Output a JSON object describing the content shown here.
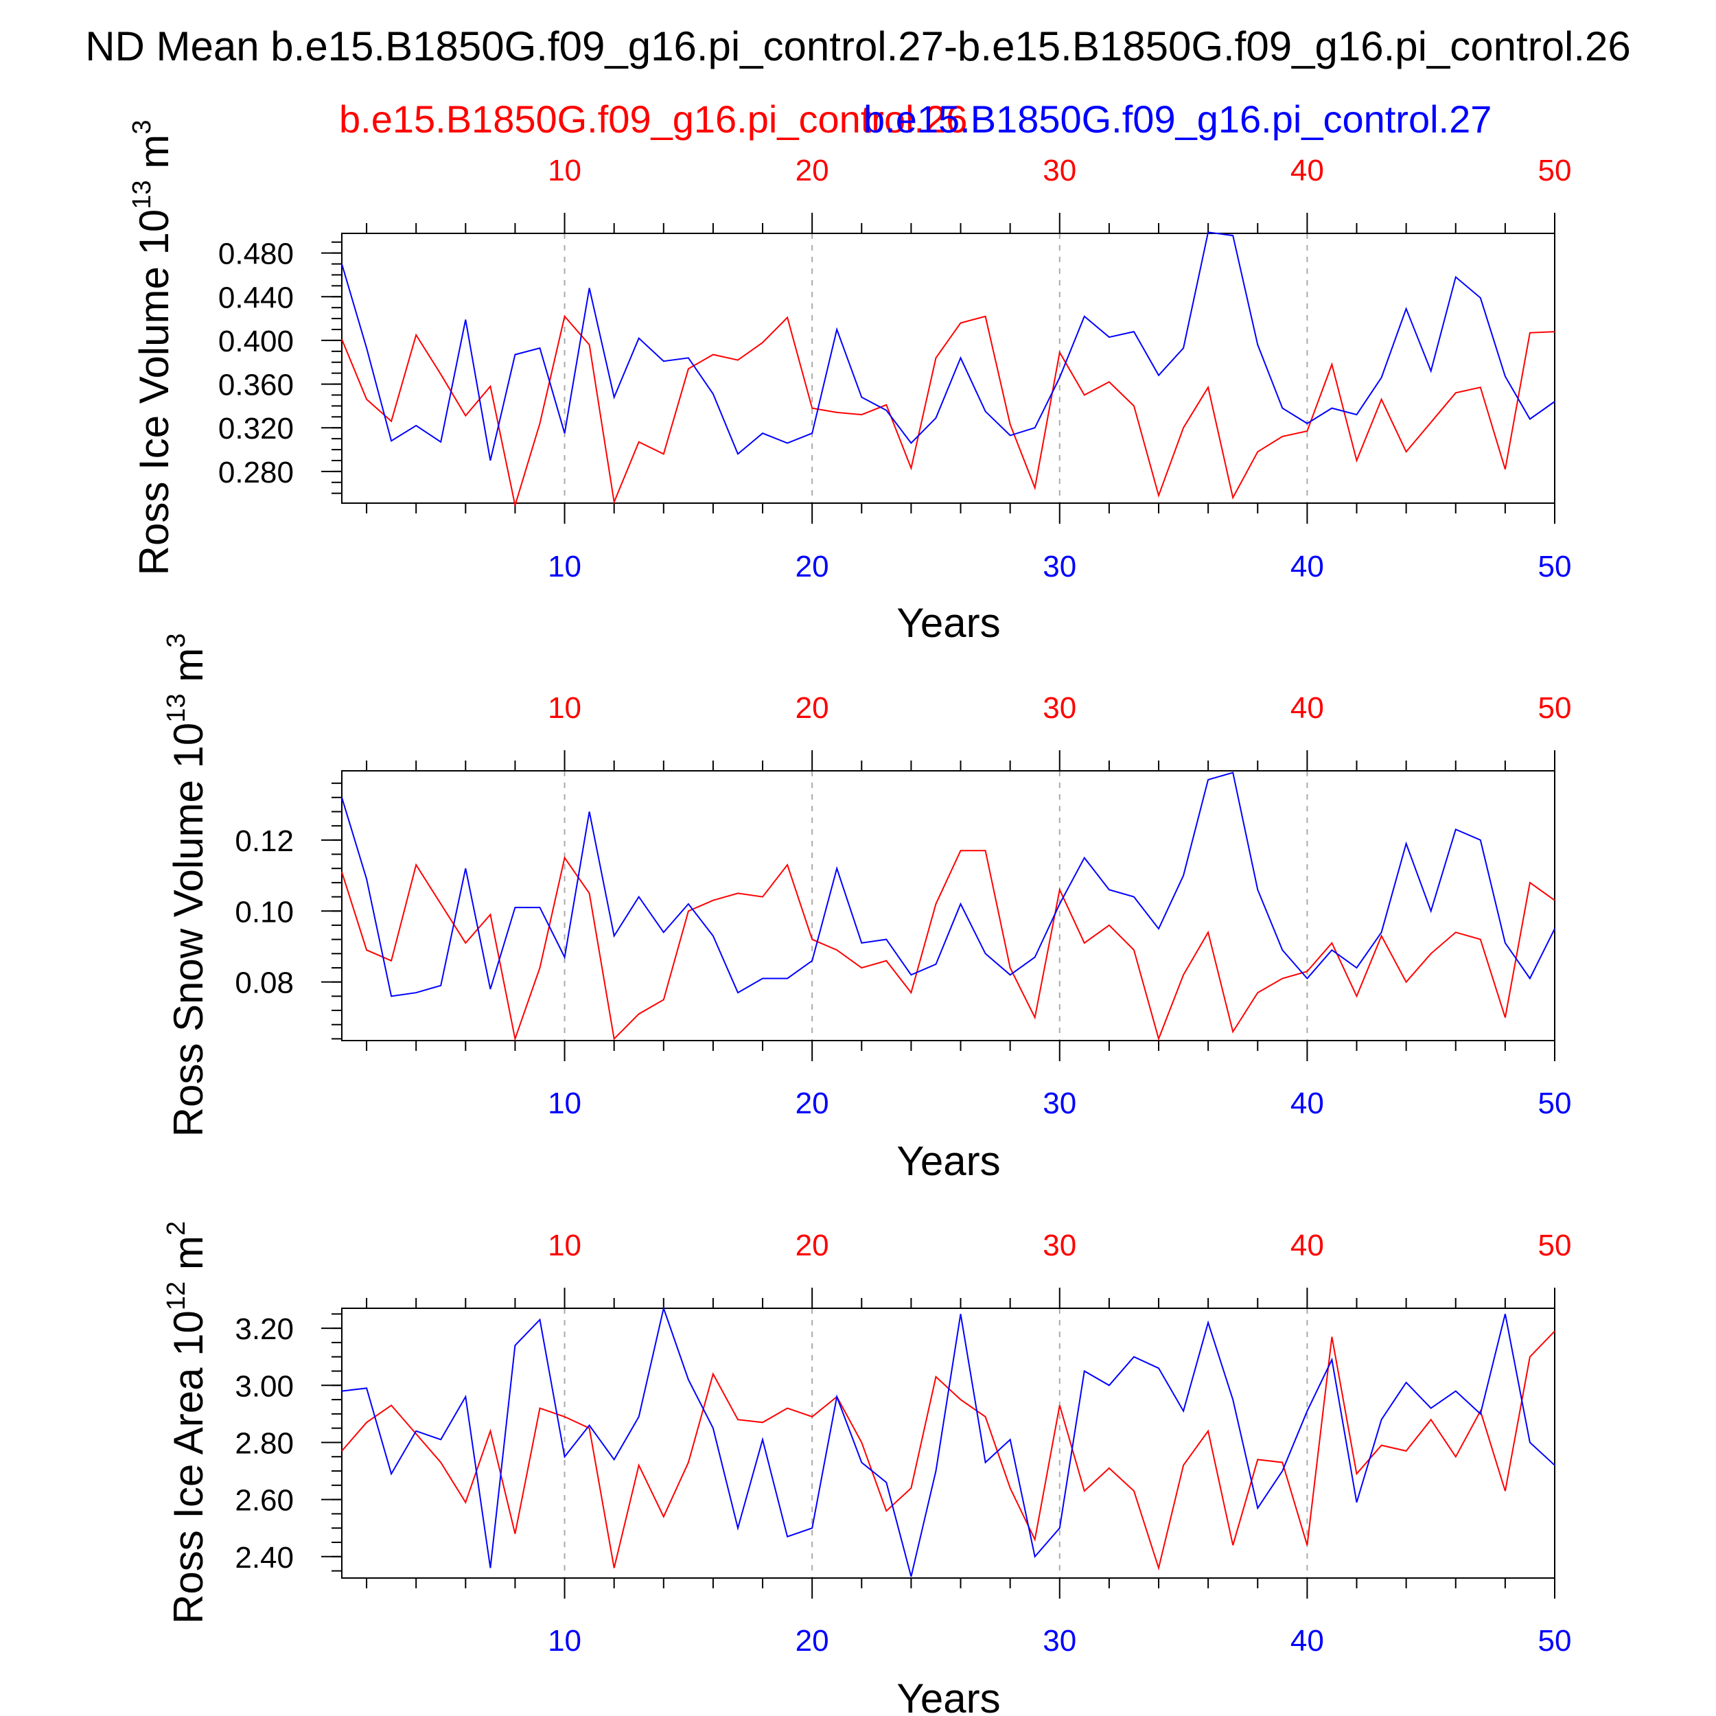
{
  "title": "ND Mean b.e15.B1850G.f09_g16.pi_control.27-b.e15.B1850G.f09_g16.pi_control.26",
  "legend": {
    "red_label": "b.e15.B1850G.f09_g16.pi_control.26",
    "blue_label": "b.e15.B1850G.f09_g16.pi_control.27"
  },
  "colors": {
    "red": "#ff0000",
    "blue": "#0000ff",
    "axis": "#000000",
    "grid": "#aaaaaa"
  },
  "chart_data": [
    {
      "type": "line",
      "ylabel": "Ross Ice Volume 10^13 m^3",
      "ylabel_base": "Ross Ice Volume 10",
      "ylabel_exp": "13",
      "ylabel_unit": " m",
      "ylabel_unit_exp": "3",
      "xlabel": "Years",
      "xlim": [
        1,
        50
      ],
      "ylim": [
        0.251,
        0.498
      ],
      "x_ticks": [
        10,
        20,
        30,
        40,
        50
      ],
      "y_ticks": [
        0.28,
        0.32,
        0.36,
        0.4,
        0.44,
        0.48
      ],
      "y_tick_labels": [
        "0.280",
        "0.320",
        "0.360",
        "0.400",
        "0.440",
        "0.480"
      ],
      "y_minor_step": 0.01,
      "grid": "vertical dashed at x ticks",
      "series": [
        {
          "name": "b.e15.B1850G.f09_g16.pi_control.26",
          "color": "red",
          "values": [
            0.401,
            0.346,
            0.326,
            0.405,
            0.369,
            0.331,
            0.358,
            0.249,
            0.324,
            0.422,
            0.396,
            0.252,
            0.307,
            0.296,
            0.374,
            0.387,
            0.382,
            0.398,
            0.421,
            0.338,
            0.334,
            0.332,
            0.341,
            0.283,
            0.384,
            0.416,
            0.422,
            0.323,
            0.265,
            0.389,
            0.35,
            0.362,
            0.34,
            0.258,
            0.32,
            0.357,
            0.256,
            0.298,
            0.312,
            0.317,
            0.378,
            0.29,
            0.346,
            0.298,
            0.325,
            0.352,
            0.357,
            0.282,
            0.407,
            0.408
          ]
        },
        {
          "name": "b.e15.B1850G.f09_g16.pi_control.27",
          "color": "blue",
          "values": [
            0.47,
            0.393,
            0.308,
            0.322,
            0.307,
            0.419,
            0.29,
            0.387,
            0.393,
            0.315,
            0.448,
            0.348,
            0.402,
            0.381,
            0.384,
            0.351,
            0.296,
            0.315,
            0.306,
            0.315,
            0.41,
            0.348,
            0.336,
            0.306,
            0.329,
            0.384,
            0.335,
            0.313,
            0.32,
            0.366,
            0.422,
            0.403,
            0.408,
            0.368,
            0.393,
            0.499,
            0.496,
            0.396,
            0.338,
            0.324,
            0.338,
            0.332,
            0.366,
            0.429,
            0.372,
            0.458,
            0.439,
            0.367,
            0.328,
            0.344
          ]
        }
      ]
    },
    {
      "type": "line",
      "ylabel": "Ross Snow Volume 10^13 m^3",
      "ylabel_base": "Ross Snow Volume 10",
      "ylabel_exp": "13",
      "ylabel_unit": " m",
      "ylabel_unit_exp": "3",
      "xlabel": "Years",
      "xlim": [
        1,
        50
      ],
      "ylim": [
        0.0635,
        0.1395
      ],
      "x_ticks": [
        10,
        20,
        30,
        40,
        50
      ],
      "y_ticks": [
        0.08,
        0.1,
        0.12
      ],
      "y_tick_labels": [
        "0.08",
        "0.10",
        "0.12"
      ],
      "y_minor_step": 0.004,
      "grid": "vertical dashed at x ticks",
      "series": [
        {
          "name": "b.e15.B1850G.f09_g16.pi_control.26",
          "color": "red",
          "values": [
            0.111,
            0.089,
            0.086,
            0.113,
            0.102,
            0.091,
            0.099,
            0.064,
            0.084,
            0.115,
            0.105,
            0.064,
            0.071,
            0.075,
            0.1,
            0.103,
            0.105,
            0.104,
            0.113,
            0.092,
            0.089,
            0.084,
            0.086,
            0.077,
            0.102,
            0.117,
            0.117,
            0.084,
            0.07,
            0.106,
            0.091,
            0.096,
            0.089,
            0.064,
            0.082,
            0.094,
            0.066,
            0.077,
            0.081,
            0.083,
            0.091,
            0.076,
            0.093,
            0.08,
            0.088,
            0.094,
            0.092,
            0.07,
            0.108,
            0.103
          ]
        },
        {
          "name": "b.e15.B1850G.f09_g16.pi_control.27",
          "color": "blue",
          "values": [
            0.132,
            0.109,
            0.076,
            0.077,
            0.079,
            0.112,
            0.078,
            0.101,
            0.101,
            0.087,
            0.128,
            0.093,
            0.104,
            0.094,
            0.102,
            0.093,
            0.077,
            0.081,
            0.081,
            0.086,
            0.112,
            0.091,
            0.092,
            0.082,
            0.085,
            0.102,
            0.088,
            0.082,
            0.087,
            0.102,
            0.115,
            0.106,
            0.104,
            0.095,
            0.11,
            0.137,
            0.139,
            0.106,
            0.089,
            0.081,
            0.089,
            0.084,
            0.094,
            0.119,
            0.1,
            0.123,
            0.12,
            0.091,
            0.081,
            0.095
          ]
        }
      ]
    },
    {
      "type": "line",
      "ylabel": "Ross Ice Area 10^12 m^2",
      "ylabel_base": "Ross Ice Area 10",
      "ylabel_exp": "12",
      "ylabel_unit": " m",
      "ylabel_unit_exp": "2",
      "xlabel": "Years",
      "xlim": [
        1,
        50
      ],
      "ylim": [
        2.325,
        3.27
      ],
      "x_ticks": [
        10,
        20,
        30,
        40,
        50
      ],
      "y_ticks": [
        2.4,
        2.6,
        2.8,
        3.0,
        3.2
      ],
      "y_tick_labels": [
        "2.40",
        "2.60",
        "2.80",
        "3.00",
        "3.20"
      ],
      "y_minor_step": 0.05,
      "grid": "vertical dashed at x ticks",
      "series": [
        {
          "name": "b.e15.B1850G.f09_g16.pi_control.26",
          "color": "red",
          "values": [
            2.77,
            2.87,
            2.93,
            2.83,
            2.73,
            2.59,
            2.84,
            2.48,
            2.92,
            2.89,
            2.85,
            2.36,
            2.72,
            2.54,
            2.73,
            3.04,
            2.88,
            2.87,
            2.92,
            2.89,
            2.96,
            2.8,
            2.56,
            2.64,
            3.03,
            2.95,
            2.89,
            2.64,
            2.46,
            2.93,
            2.63,
            2.71,
            2.63,
            2.36,
            2.72,
            2.84,
            2.44,
            2.74,
            2.73,
            2.44,
            3.17,
            2.69,
            2.79,
            2.77,
            2.88,
            2.75,
            2.91,
            2.63,
            3.1,
            3.19
          ]
        },
        {
          "name": "b.e15.B1850G.f09_g16.pi_control.27",
          "color": "blue",
          "values": [
            2.98,
            2.99,
            2.69,
            2.84,
            2.81,
            2.96,
            2.36,
            3.14,
            3.23,
            2.75,
            2.86,
            2.74,
            2.89,
            3.27,
            3.02,
            2.85,
            2.5,
            2.81,
            2.47,
            2.5,
            2.96,
            2.73,
            2.66,
            2.33,
            2.7,
            3.25,
            2.73,
            2.81,
            2.4,
            2.5,
            3.05,
            3.0,
            3.1,
            3.06,
            2.91,
            3.22,
            2.95,
            2.57,
            2.7,
            2.91,
            3.09,
            2.59,
            2.88,
            3.01,
            2.92,
            2.98,
            2.9,
            3.25,
            2.8,
            2.72
          ]
        }
      ]
    }
  ]
}
